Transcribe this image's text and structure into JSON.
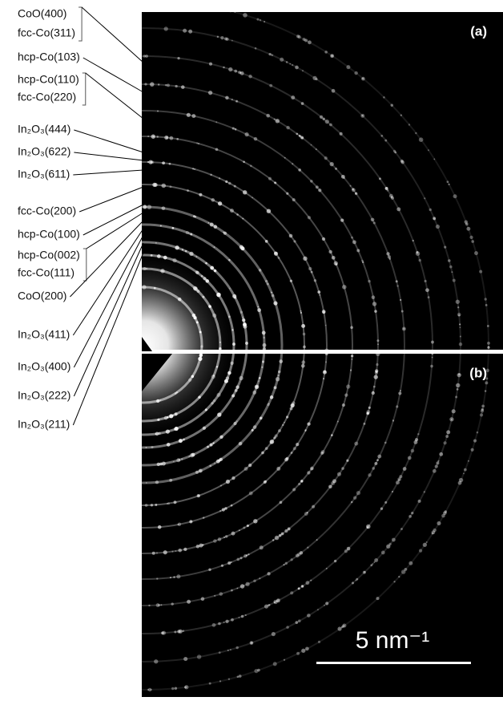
{
  "labels": [
    {
      "lines": [
        "CoO(400)",
        "fcc-Co(311)"
      ]
    },
    {
      "lines": [
        "hcp-Co(103)"
      ]
    },
    {
      "lines": [
        "hcp-Co(110)",
        "fcc-Co(220)"
      ]
    },
    {
      "lines": [
        "In₂O₃(444)"
      ]
    },
    {
      "lines": [
        "In₂O₃(622)"
      ]
    },
    {
      "lines": [
        "In₂O₃(611)"
      ]
    },
    {
      "lines": [
        "fcc-Co(200)"
      ]
    },
    {
      "lines": [
        "hcp-Co(100)"
      ]
    },
    {
      "lines": [
        "hcp-Co(002)",
        "fcc-Co(111)"
      ]
    },
    {
      "lines": [
        "CoO(200)"
      ]
    },
    {
      "lines": [
        "In₂O₃(411)"
      ]
    },
    {
      "lines": [
        "In₂O₃(400)"
      ]
    },
    {
      "lines": [
        "In₂O₃(222)"
      ]
    },
    {
      "lines": [
        "In₂O₃(211)"
      ]
    }
  ],
  "panels": [
    "(a)",
    "(b)"
  ],
  "scale_bar": "5 nm⁻¹"
}
